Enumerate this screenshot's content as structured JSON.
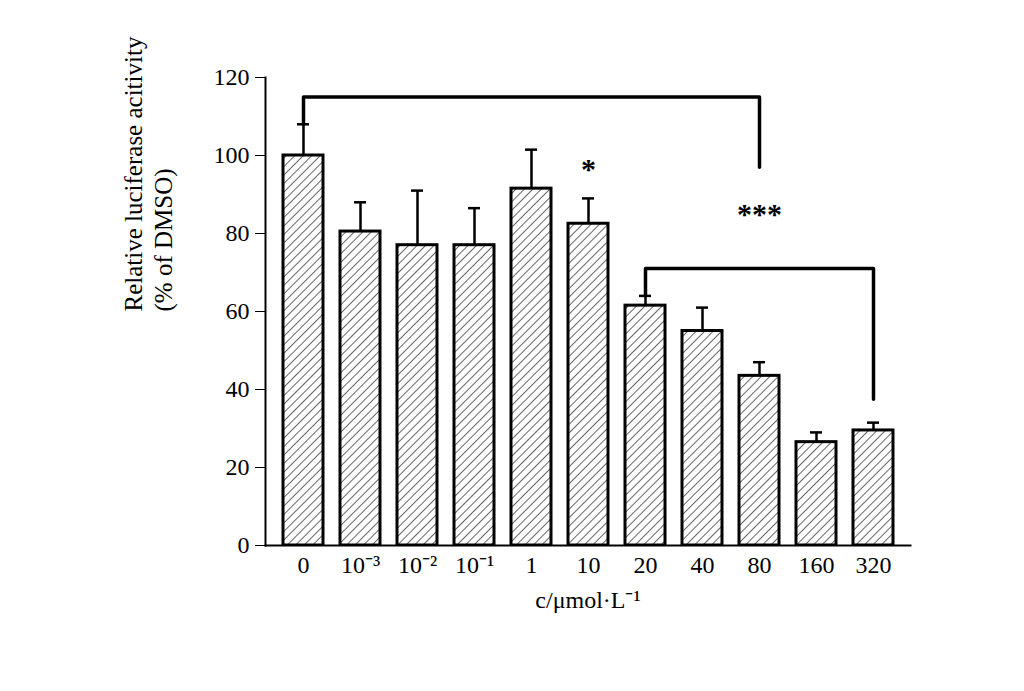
{
  "chart_data": {
    "type": "bar",
    "categories": [
      "0",
      "10⁻³",
      "10⁻²",
      "10⁻¹",
      "1",
      "10",
      "20",
      "40",
      "80",
      "160",
      "320"
    ],
    "values": [
      100,
      80.5,
      77,
      77,
      91.5,
      82.5,
      61.5,
      55,
      43.5,
      26.5,
      29.5
    ],
    "errors": [
      8,
      7.5,
      14,
      9.5,
      10,
      6.5,
      2.5,
      6,
      3.5,
      2.5,
      2
    ],
    "color": "#000000",
    "ylim": [
      0,
      120
    ],
    "yticks": [
      0,
      20,
      40,
      60,
      80,
      100,
      120
    ],
    "grid": false,
    "y_label": "Relative luciferase acitivity\n(% of DMSO)",
    "x_label": "c/μmol·L⁻¹",
    "annotations": [
      {
        "text": "*",
        "category": "10"
      },
      {
        "text": "***",
        "brackets": [
          [
            "0",
            "80"
          ],
          [
            "20",
            "320"
          ]
        ]
      }
    ]
  }
}
